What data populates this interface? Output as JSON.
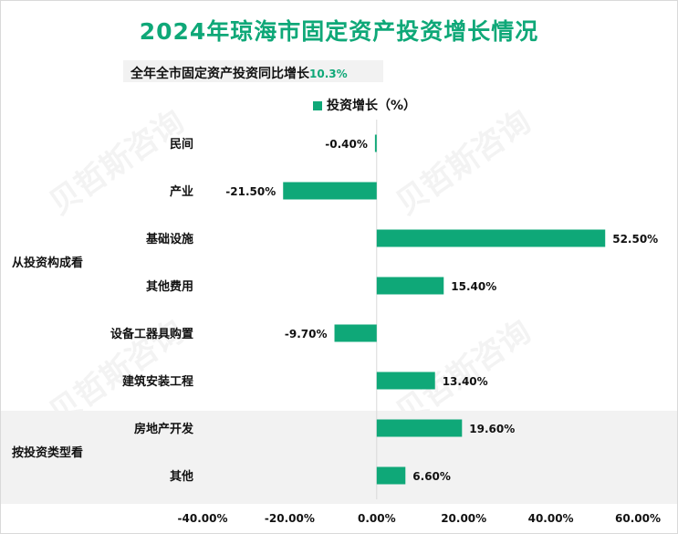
{
  "chart_data": {
    "type": "bar",
    "orientation": "horizontal",
    "title": "2024年琼海市固定资产投资增长情况",
    "subtitle_prefix": "全年全市固定资产投资同比增长",
    "subtitle_value": "10.3%",
    "legend": "投资增长（%）",
    "groups": [
      {
        "label": "从投资构成看",
        "categories": [
          "民间",
          "产业",
          "基础设施",
          "其他费用",
          "设备工器具购置",
          "建筑安装工程"
        ]
      },
      {
        "label": "按投资类型看",
        "categories": [
          "房地产开发",
          "其他"
        ]
      }
    ],
    "categories": [
      "民间",
      "产业",
      "基础设施",
      "其他费用",
      "设备工器具购置",
      "建筑安装工程",
      "房地产开发",
      "其他"
    ],
    "values": [
      -0.4,
      -21.5,
      52.5,
      15.4,
      -9.7,
      13.4,
      19.6,
      6.6
    ],
    "value_labels": [
      "-0.40%",
      "-21.50%",
      "52.50%",
      "15.40%",
      "-9.70%",
      "13.40%",
      "19.60%",
      "6.60%"
    ],
    "xlim": [
      -40,
      60
    ],
    "xticks": [
      -40,
      -20,
      0,
      20,
      40,
      60
    ],
    "xtick_labels": [
      "-40.00%",
      "-20.00%",
      "0.00%",
      "20.00%",
      "40.00%",
      "60.00%"
    ],
    "color": "#0fa878",
    "grid": false,
    "legend_position": "top"
  }
}
